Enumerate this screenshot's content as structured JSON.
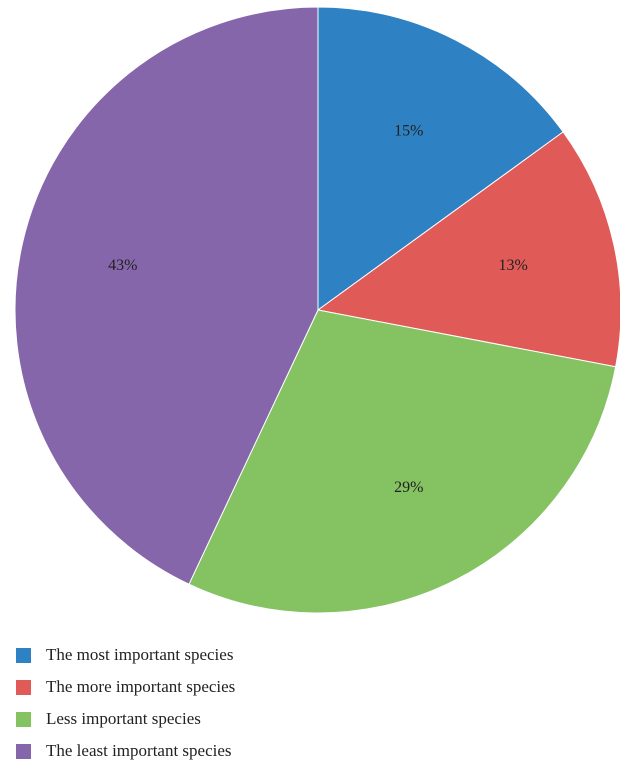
{
  "chart_data": {
    "type": "pie",
    "title": "",
    "start_angle_deg": 0,
    "direction": "clockwise",
    "slices": [
      {
        "label": "The most important species",
        "value": 15,
        "display": "15%",
        "color": "#2E81C2"
      },
      {
        "label": "The more important species",
        "value": 13,
        "display": "13%",
        "color": "#E05A57"
      },
      {
        "label": "Less important species",
        "value": 29,
        "display": "29%",
        "color": "#84C262"
      },
      {
        "label": "The least important species",
        "value": 43,
        "display": "43%",
        "color": "#8666AA"
      }
    ],
    "legend_position": "bottom-left"
  }
}
